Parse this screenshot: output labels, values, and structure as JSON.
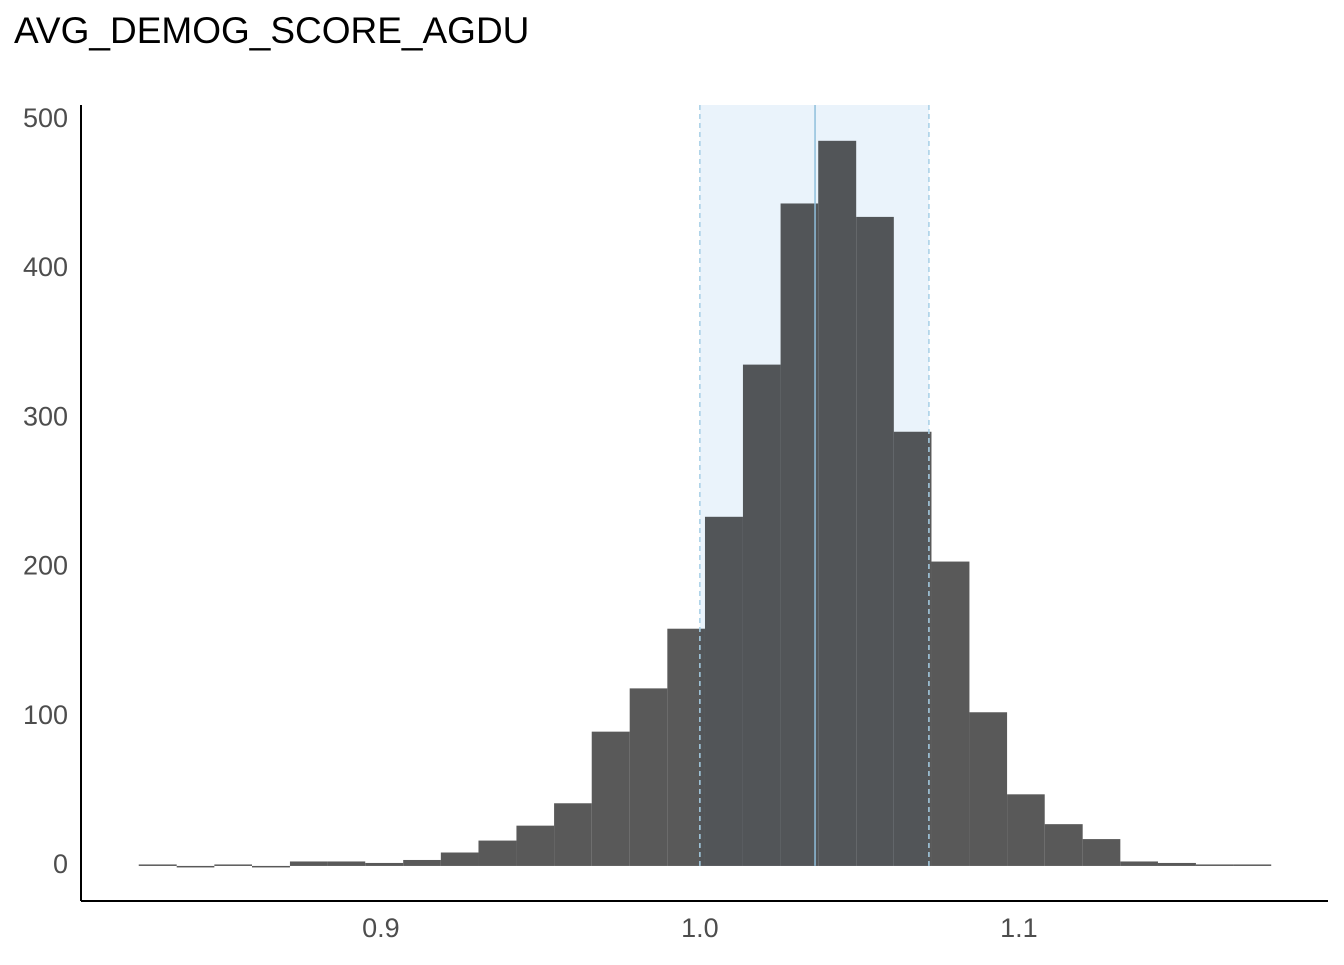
{
  "chart_data": {
    "type": "histogram",
    "title": "AVG_DEMOG_SCORE_AGDU",
    "bins": [
      0.8241,
      0.836,
      0.8478,
      0.8596,
      0.8715,
      0.8833,
      0.8951,
      0.907,
      0.9188,
      0.9306,
      0.9425,
      0.9543,
      0.9661,
      0.978,
      0.9898,
      1.0016,
      1.0135,
      1.0253,
      1.0371,
      1.049,
      1.0608,
      1.0726,
      1.0845,
      1.0963,
      1.1081,
      1.12,
      1.1318,
      1.1436,
      1.1555,
      1.1673,
      1.1791
    ],
    "values": [
      1,
      0,
      1,
      0,
      3,
      3,
      2,
      4,
      9,
      17,
      27,
      42,
      90,
      119,
      159,
      234,
      336,
      444,
      486,
      435,
      291,
      204,
      103,
      48,
      28,
      18,
      3,
      2,
      1,
      1
    ],
    "color": "#595959",
    "band": [
      1.0,
      1.0718
    ],
    "band_color": "#eaf3fb",
    "band_edge_color": "#a6cfe6",
    "reference_line": 1.0361,
    "reference_line_color": "#8fbfdc",
    "xlim": [
      0.806,
      1.1969
    ],
    "ylim": [
      -23.5,
      510
    ],
    "xticks": [
      0.9,
      {
        "value": 1,
        "label": "1.0"
      },
      1.1
    ],
    "yticks": [
      0,
      100,
      200,
      300,
      400,
      500
    ]
  }
}
